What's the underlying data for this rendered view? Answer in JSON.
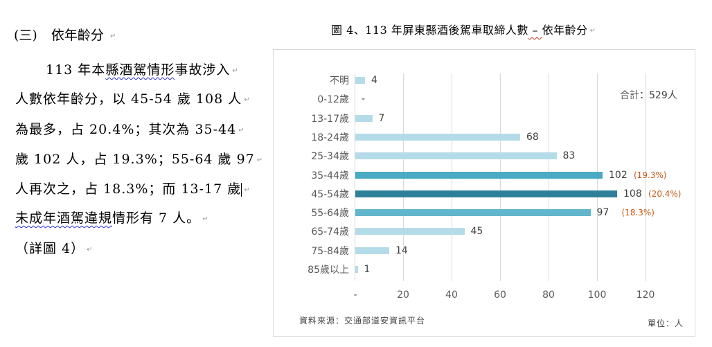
{
  "section": {
    "number": "(三)",
    "title": "依年齡分"
  },
  "paragraph": {
    "lines": [
      {
        "pre": "113 年本",
        "squiggle": "縣酒駕情形",
        "post": "事故涉入"
      },
      {
        "text": "人數依年齡分，以 45-54 歲 108 人"
      },
      {
        "text": "為最多，占 20.4%；其次為 35-44"
      },
      {
        "text": "歲 102 人，占 19.3%；55-64 歲 97"
      },
      {
        "text": "人再次之，占 18.3%；而 13-17 歲"
      },
      {
        "squiggle": "未成年酒駕違規",
        "post": "情形有 7 人。"
      },
      {
        "text": "（詳圖 4）"
      }
    ]
  },
  "figure": {
    "title_pre": "圖 4、113 年屏東縣酒後駕車取締人數",
    "title_dash": " – ",
    "title_post": "依年齡分",
    "total_label": "合計",
    "total_value": "：529人",
    "source": "資料來源：交通部道安資訊平台",
    "unit": "單位：人"
  },
  "colors": {
    "light": "#b4dce8",
    "mid": "#62b6cc",
    "midDark": "#4aaac4",
    "dark": "#2e7f99",
    "pct": "#c55a11"
  },
  "chart_data": {
    "type": "bar",
    "orientation": "horizontal",
    "title": "圖 4、113 年屏東縣酒後駕車取締人數 – 依年齡分",
    "categories": [
      "不明",
      "0-12歲",
      "13-17歲",
      "18-24歲",
      "25-34歲",
      "35-44歲",
      "45-54歲",
      "55-64歲",
      "65-74歲",
      "75-84歲",
      "85歲以上"
    ],
    "values": [
      4,
      0,
      7,
      68,
      83,
      102,
      108,
      97,
      45,
      14,
      1
    ],
    "value_labels": [
      "4",
      "-",
      "7",
      "68",
      "83",
      "102",
      "108",
      "97",
      "45",
      "14",
      "1"
    ],
    "percent_labels": {
      "35-44歲": "(19.3%)",
      "45-54歲": "(20.4%)",
      "55-64歲": "(18.3%)"
    },
    "xlabel": "",
    "ylabel": "",
    "xlim": [
      0,
      120
    ],
    "xticks": [
      "-",
      "20",
      "40",
      "60",
      "80",
      "100",
      "120"
    ],
    "grid": true,
    "annotations": [
      "合計：529人",
      "資料來源：交通部道安資訊平台",
      "單位：人"
    ]
  }
}
